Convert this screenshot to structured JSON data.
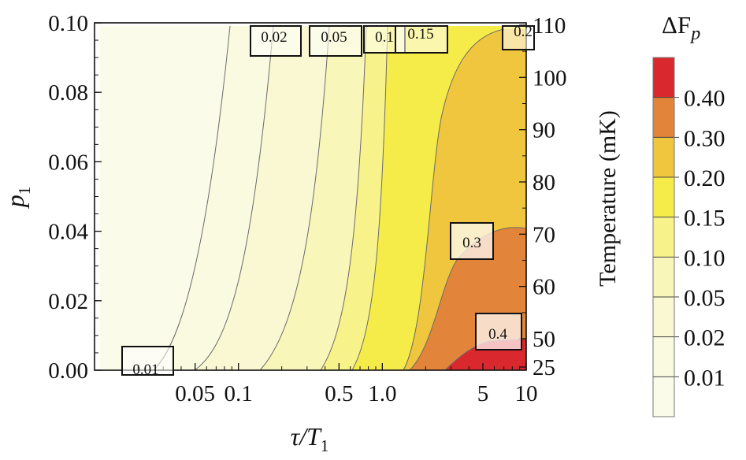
{
  "chart_data": {
    "type": "contour",
    "xlabel": "τ/T",
    "xlabel_sub": "1",
    "ylabel": "p",
    "ylabel_sub": "1",
    "y2label": "Temperature (mK)",
    "x_scale": "log",
    "xlim": [
      0.01,
      10
    ],
    "ylim": [
      0,
      0.1
    ],
    "x_ticks": [
      0.05,
      0.1,
      0.5,
      1.0,
      5,
      10
    ],
    "x_tick_labels": [
      "0.05",
      "0.1",
      "0.5",
      "1.0",
      "5",
      "10"
    ],
    "y_ticks": [
      0,
      0.02,
      0.04,
      0.06,
      0.08,
      0.1
    ],
    "y_tick_labels": [
      "0.00",
      "0.02",
      "0.04",
      "0.06",
      "0.08",
      "0.10"
    ],
    "y2_ticks": [
      25,
      50,
      60,
      70,
      80,
      90,
      100,
      110
    ],
    "y2_tick_labels": [
      "25",
      "50",
      "60",
      "70",
      "80",
      "90",
      "100",
      "110"
    ],
    "contour_levels": [
      0.01,
      0.02,
      0.05,
      0.1,
      0.15,
      0.2,
      0.3,
      0.4
    ],
    "contour_labels": [
      "0.01",
      "0.02",
      "0.05",
      "0.1",
      "0.15",
      "0.2",
      "0.3",
      "0.4"
    ],
    "colorbar": {
      "title": "ΔF",
      "title_sub": "p",
      "levels": [
        0,
        0.01,
        0.02,
        0.05,
        0.1,
        0.15,
        0.2,
        0.3,
        0.4,
        0.5
      ],
      "tick_labels": [
        "0.40",
        "0.30",
        "0.20",
        "0.15",
        "0.10",
        "0.05",
        "0.02",
        "0.01"
      ],
      "colors": [
        "#fbfbea",
        "#fafae0",
        "#f9f8d2",
        "#f8f6b8",
        "#f7f38a",
        "#f5ec4a",
        "#efc63d",
        "#e2853a",
        "#d9282e"
      ]
    },
    "grid": false
  }
}
